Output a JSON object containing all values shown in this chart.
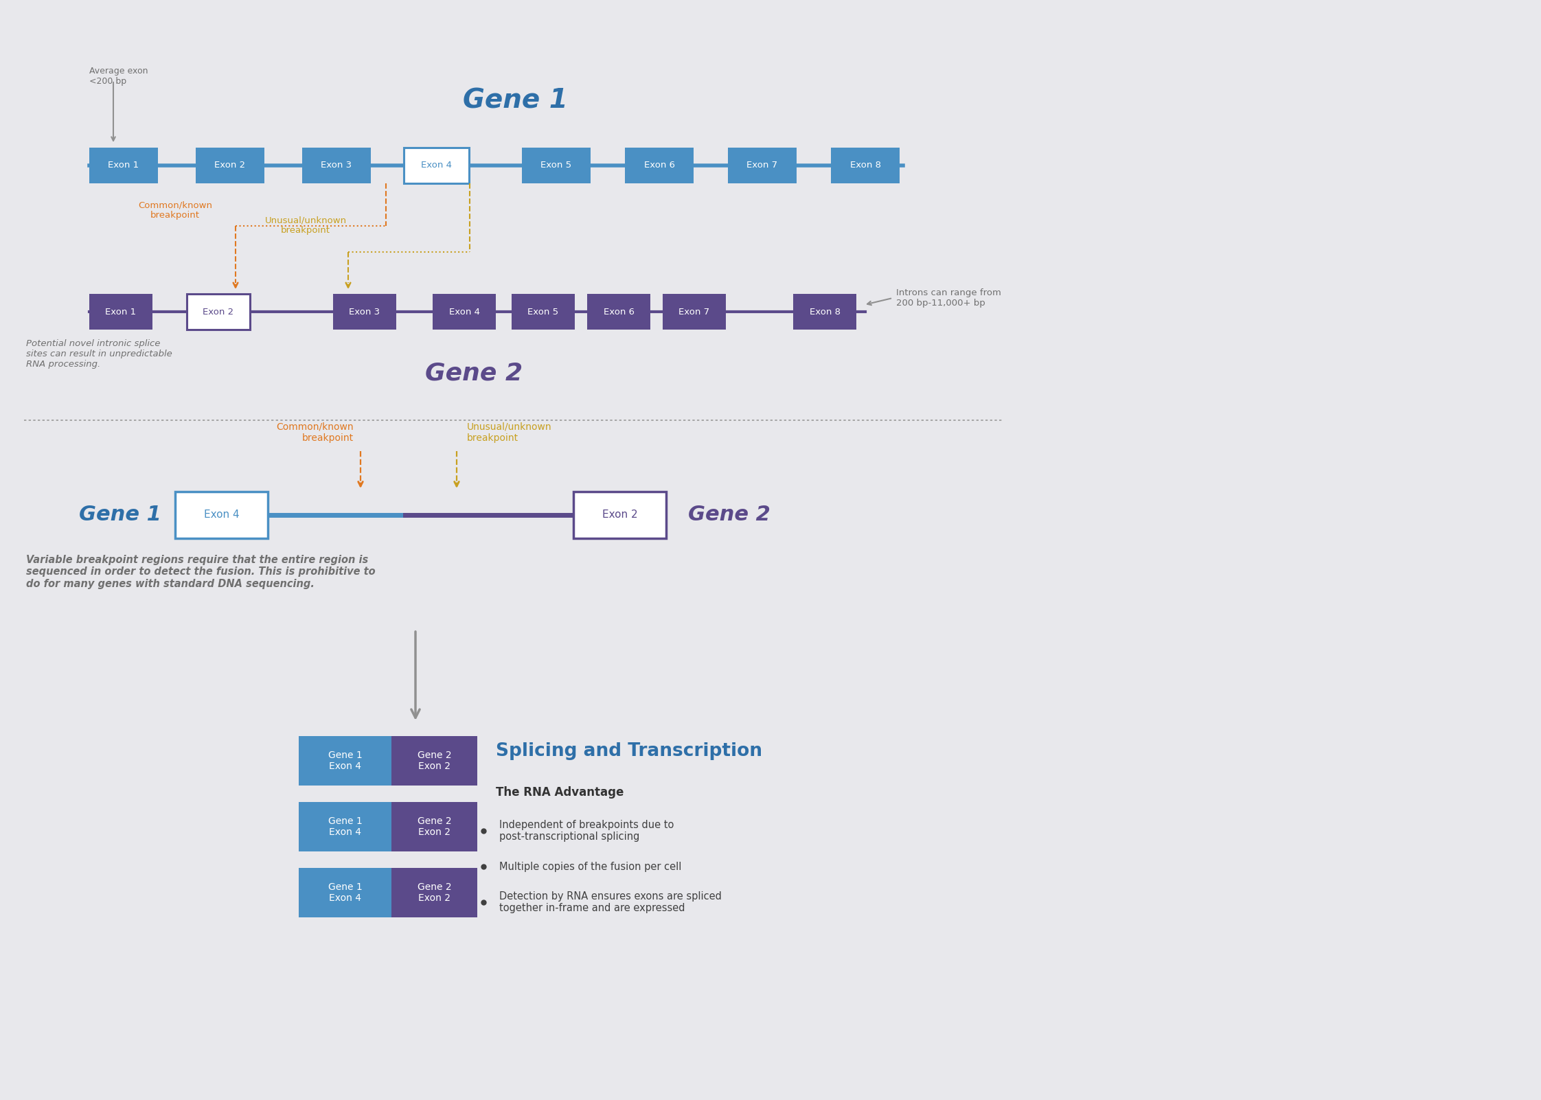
{
  "bg_color": "#e8e8ec",
  "gene1_color": "#4a90c4",
  "gene2_color": "#5b4a8a",
  "orange_color": "#e07820",
  "gold_color": "#c8a020",
  "gray_text": "#707070",
  "gray_arrow": "#909090",
  "gene1_label_color": "#2e6fa8",
  "gene2_label_color": "#5b4a8a",
  "dark_text": "#333333",
  "gene1_exons": [
    "Exon 1",
    "Exon 2",
    "Exon 3",
    "Exon 4",
    "Exon 5",
    "Exon 6",
    "Exon 7",
    "Exon 8"
  ],
  "gene2_exons": [
    "Exon 1",
    "Exon 2",
    "Exon 3",
    "Exon 4",
    "Exon 5",
    "Exon 6",
    "Exon 7",
    "Exon 8"
  ],
  "gene1_title": "Gene 1",
  "gene2_title": "Gene 2",
  "avg_exon_text": "Average exon\n<200 bp",
  "common_bp_text": "Common/known\nbreakpoint",
  "unusual_bp_text": "Unusual/unknown\nbreakpoint",
  "intron_range_text": "Introns can range from\n200 bp-11,000+ bp",
  "novel_splice_text": "Potential novel intronic splice\nsites can result in unpredictable\nRNA processing.",
  "variable_bp_text": "Variable breakpoint regions require that the entire region is\nsequenced in order to detect the fusion. This is prohibitive to\ndo for many genes with standard DNA sequencing.",
  "splicing_title": "Splicing and Transcription",
  "rna_advantage_title": "The RNA Advantage",
  "bullet1": "Independent of breakpoints due to\npost-transcriptional splicing",
  "bullet2": "Multiple copies of the fusion per cell",
  "bullet3": "Detection by RNA ensures exons are spliced\ntogether in-frame and are expressed"
}
